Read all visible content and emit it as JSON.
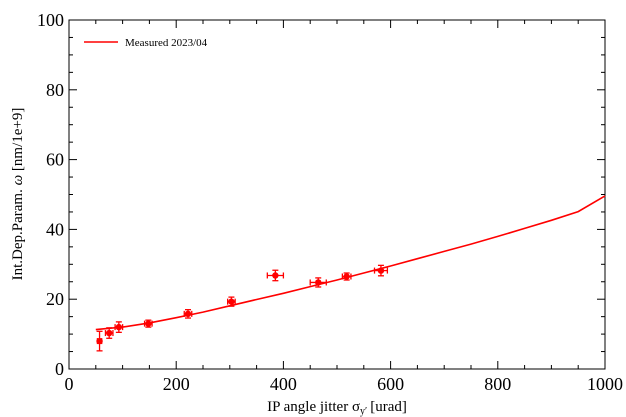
{
  "chart_data": {
    "type": "scatter",
    "xlabel": "IP angle jitter σ",
    "xlabel_sub": "y′",
    "xlabel_unit": "[urad]",
    "ylabel_prefix": "Int.Dep.Param. ",
    "ylabel_symbol": "ω",
    "ylabel_unit": " [nm/1e+9]",
    "xlim": [
      0,
      1000
    ],
    "ylim": [
      0,
      100
    ],
    "x_ticks": [
      0,
      200,
      400,
      600,
      800,
      1000
    ],
    "y_ticks": [
      0,
      20,
      40,
      60,
      80,
      100
    ],
    "x_tick_labels": [
      "0",
      "200",
      "400",
      "600",
      "800",
      "1000"
    ],
    "y_tick_labels": [
      "0",
      "20",
      "40",
      "60",
      "80",
      "100"
    ],
    "grid": false,
    "legend_position": "top-left",
    "series": [
      {
        "name": "Measured 2023/04",
        "kind": "fit-line",
        "color": "#ff0000",
        "x": [
          50,
          100,
          150,
          200,
          250,
          300,
          350,
          400,
          450,
          500,
          550,
          600,
          650,
          700,
          750,
          800,
          850,
          900,
          950,
          1000
        ],
        "y": [
          11.3,
          12.0,
          13.2,
          14.7,
          16.3,
          18.1,
          19.9,
          21.7,
          23.6,
          25.5,
          27.5,
          29.5,
          31.6,
          33.7,
          35.8,
          38.0,
          40.3,
          42.6,
          45.1,
          49.6
        ]
      },
      {
        "kind": "points",
        "color": "#ff0000",
        "points": [
          {
            "x": 57,
            "y": 8.0,
            "xerr": 4,
            "yerr": 2.8
          },
          {
            "x": 75,
            "y": 10.3,
            "xerr": 7,
            "yerr": 1.5
          },
          {
            "x": 93,
            "y": 12.0,
            "xerr": 7,
            "yerr": 1.5
          },
          {
            "x": 148,
            "y": 13.0,
            "xerr": 7,
            "yerr": 1.0
          },
          {
            "x": 222,
            "y": 15.8,
            "xerr": 7,
            "yerr": 1.2
          },
          {
            "x": 303,
            "y": 19.3,
            "xerr": 7,
            "yerr": 1.3
          },
          {
            "x": 385,
            "y": 26.8,
            "xerr": 15,
            "yerr": 1.5
          },
          {
            "x": 465,
            "y": 24.8,
            "xerr": 15,
            "yerr": 1.3
          },
          {
            "x": 518,
            "y": 26.5,
            "xerr": 8,
            "yerr": 1.0
          },
          {
            "x": 582,
            "y": 28.2,
            "xerr": 12,
            "yerr": 1.5
          }
        ]
      }
    ]
  }
}
